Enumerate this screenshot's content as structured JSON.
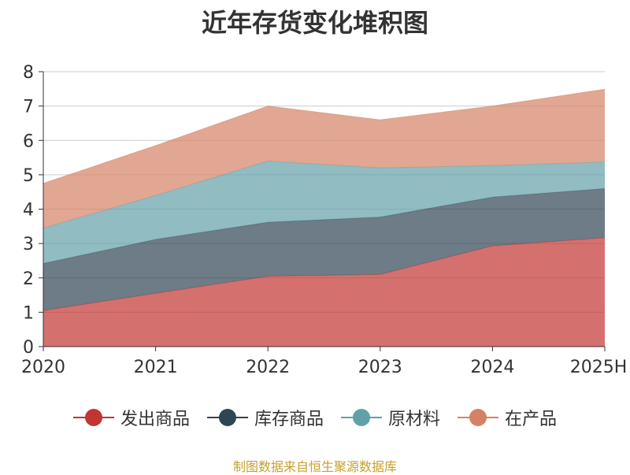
{
  "title": "近年存货变化堆积图",
  "source": "制图数据来自恒生聚源数据库",
  "chart_data": {
    "type": "area",
    "stacked": true,
    "categories": [
      "2020",
      "2021",
      "2022",
      "2023",
      "2024",
      "2025H"
    ],
    "ylim": [
      0,
      8
    ],
    "yticks": [
      "0",
      "1",
      "2",
      "3",
      "4",
      "5",
      "6",
      "7",
      "8"
    ],
    "grid": true,
    "legend_position": "bottom",
    "series": [
      {
        "name": "发出商品",
        "color": "#c23531",
        "values": [
          1.05,
          1.55,
          2.05,
          2.1,
          2.93,
          3.17
        ]
      },
      {
        "name": "库存商品",
        "color": "#2f4554",
        "values": [
          1.37,
          1.57,
          1.57,
          1.67,
          1.42,
          1.43
        ]
      },
      {
        "name": "原材料",
        "color": "#61a0a8",
        "values": [
          1.03,
          1.28,
          1.78,
          1.43,
          0.92,
          0.77
        ]
      },
      {
        "name": "在产品",
        "color": "#d48265",
        "values": [
          1.3,
          1.45,
          1.6,
          1.4,
          1.73,
          2.12
        ]
      }
    ]
  }
}
